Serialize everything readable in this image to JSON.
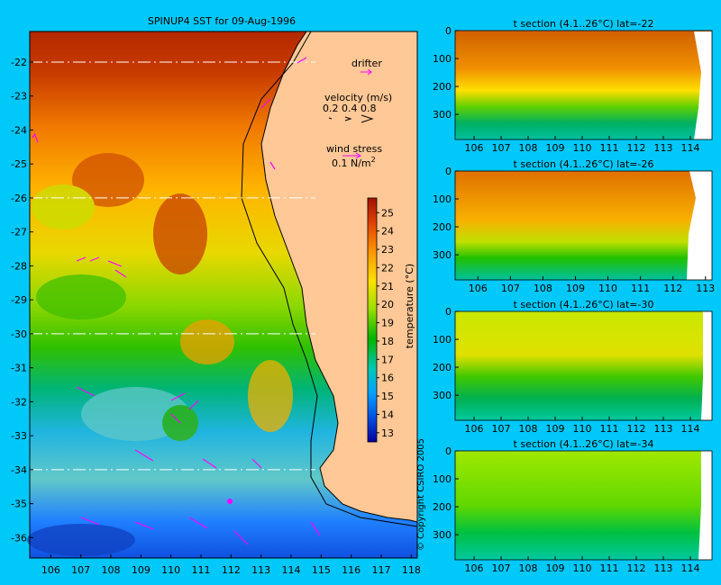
{
  "chart_data": [
    {
      "type": "heatmap",
      "title": "SPINUP4 SST for 09-Aug-1996",
      "xlim": [
        105.3,
        118.2
      ],
      "ylim": [
        -36.6,
        -21.1
      ],
      "x_ticks": [
        "106",
        "107",
        "108",
        "109",
        "110",
        "111",
        "112",
        "113",
        "114",
        "115",
        "116",
        "117",
        "118"
      ],
      "y_ticks": [
        "-22",
        "-23",
        "-24",
        "-25",
        "-26",
        "-27",
        "-28",
        "-29",
        "-30",
        "-31",
        "-32",
        "-33",
        "-34",
        "-35",
        "-36"
      ],
      "section_lines_lat": [
        -22,
        -26,
        -30,
        -34
      ],
      "colorbar": {
        "label": "temperature (°C)",
        "ticks": [
          "25",
          "24",
          "23",
          "22",
          "21",
          "20",
          "19",
          "18",
          "17",
          "16",
          "15",
          "14",
          "13"
        ],
        "range": [
          12.5,
          25.8
        ]
      },
      "legend": {
        "drifter": "drifter",
        "velocity_title": "velocity (m/s)",
        "velocity_values": "0.2 0.4 0.8",
        "wind_title": "wind stress",
        "wind_value": "0.1 N/m",
        "wind_sup": "2"
      }
    },
    {
      "type": "heatmap",
      "title": "t section (4.1..26°C) lat=-22",
      "x_ticks": [
        "106",
        "107",
        "108",
        "109",
        "110",
        "111",
        "112",
        "113",
        "114"
      ],
      "y_ticks": [
        "0",
        "100",
        "200",
        "300"
      ],
      "ylim": [
        0,
        390
      ]
    },
    {
      "type": "heatmap",
      "title": "t section (4.1..26°C) lat=-26",
      "x_ticks": [
        "106",
        "107",
        "108",
        "109",
        "110",
        "111",
        "112",
        "113"
      ],
      "y_ticks": [
        "0",
        "100",
        "200",
        "300"
      ],
      "ylim": [
        0,
        390
      ]
    },
    {
      "type": "heatmap",
      "title": "t section (4.1..26°C) lat=-30",
      "x_ticks": [
        "106",
        "107",
        "108",
        "109",
        "110",
        "111",
        "112",
        "113",
        "114"
      ],
      "y_ticks": [
        "0",
        "100",
        "200",
        "300"
      ],
      "ylim": [
        0,
        390
      ]
    },
    {
      "type": "heatmap",
      "title": "t section (4.1..26°C) lat=-34",
      "x_ticks": [
        "106",
        "107",
        "108",
        "109",
        "110",
        "111",
        "112",
        "113",
        "114"
      ],
      "y_ticks": [
        "0",
        "100",
        "200",
        "300"
      ],
      "ylim": [
        0,
        390
      ]
    }
  ],
  "copyright": "© Copyright CSIRO 2005",
  "colors": {
    "background": "#00c8f8",
    "land": "#ffc896",
    "vector": "#ff00ff"
  }
}
